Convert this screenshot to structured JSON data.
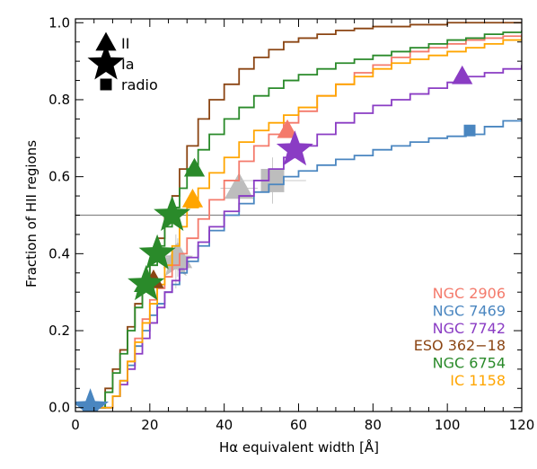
{
  "chart_data": {
    "type": "line",
    "xlabel": "Hα equivalent width [Å]",
    "ylabel": "Fraction of HII regions",
    "xlim": [
      0,
      120
    ],
    "ylim": [
      -0.01,
      1.01
    ],
    "x_ticks": [
      "0",
      "20",
      "40",
      "60",
      "80",
      "100",
      "120"
    ],
    "y_ticks": [
      "0.0",
      "0.2",
      "0.4",
      "0.6",
      "0.8",
      "1.0"
    ],
    "reference_line_y": 0.5,
    "legend_placement": "bottom-right",
    "marker_legend": [
      {
        "symbol": "triangle",
        "label": "II"
      },
      {
        "symbol": "star",
        "label": "Ia"
      },
      {
        "symbol": "square",
        "label": "radio"
      }
    ],
    "series": [
      {
        "name": "NGC 2906",
        "color": "#f47a6b",
        "x": [
          4,
          8,
          10,
          12,
          14,
          16,
          18,
          20,
          22,
          24,
          26,
          28,
          30,
          33,
          36,
          40,
          44,
          48,
          52,
          56,
          60,
          65,
          70,
          75,
          80,
          85,
          90,
          95,
          100,
          105,
          110,
          115,
          120
        ],
        "y": [
          0,
          0,
          0.03,
          0.07,
          0.12,
          0.18,
          0.23,
          0.28,
          0.31,
          0.34,
          0.37,
          0.4,
          0.44,
          0.49,
          0.54,
          0.59,
          0.64,
          0.68,
          0.71,
          0.74,
          0.77,
          0.81,
          0.84,
          0.87,
          0.89,
          0.91,
          0.925,
          0.935,
          0.945,
          0.955,
          0.96,
          0.965,
          0.97
        ],
        "markers": [
          {
            "type": "triangle",
            "x": 57,
            "y": 0.72
          }
        ]
      },
      {
        "name": "NGC 7469",
        "color": "#4a86c0",
        "x": [
          4,
          8,
          10,
          12,
          14,
          16,
          18,
          20,
          22,
          24,
          26,
          28,
          30,
          33,
          36,
          40,
          44,
          48,
          52,
          56,
          60,
          65,
          70,
          75,
          80,
          85,
          90,
          95,
          100,
          105,
          110,
          115,
          120
        ],
        "y": [
          0,
          0,
          0.03,
          0.07,
          0.11,
          0.16,
          0.2,
          0.24,
          0.27,
          0.3,
          0.32,
          0.35,
          0.38,
          0.42,
          0.46,
          0.5,
          0.53,
          0.56,
          0.58,
          0.6,
          0.615,
          0.63,
          0.645,
          0.655,
          0.67,
          0.68,
          0.69,
          0.7,
          0.705,
          0.71,
          0.73,
          0.745,
          0.75
        ],
        "markers": [
          {
            "type": "star",
            "x": 4,
            "y": 0.0
          },
          {
            "type": "square",
            "x": 106,
            "y": 0.72
          }
        ]
      },
      {
        "name": "NGC 7742",
        "color": "#8a3cc4",
        "x": [
          4,
          8,
          10,
          12,
          14,
          16,
          18,
          20,
          22,
          24,
          26,
          28,
          30,
          33,
          36,
          40,
          44,
          48,
          52,
          56,
          60,
          65,
          70,
          75,
          80,
          85,
          90,
          95,
          100,
          105,
          110,
          115,
          120
        ],
        "y": [
          0,
          0,
          0.03,
          0.06,
          0.1,
          0.14,
          0.18,
          0.22,
          0.26,
          0.3,
          0.33,
          0.36,
          0.39,
          0.43,
          0.47,
          0.51,
          0.55,
          0.59,
          0.62,
          0.65,
          0.68,
          0.71,
          0.74,
          0.765,
          0.785,
          0.8,
          0.815,
          0.83,
          0.845,
          0.86,
          0.87,
          0.88,
          0.89
        ],
        "markers": [
          {
            "type": "triangle",
            "x": 104,
            "y": 0.86
          },
          {
            "type": "star",
            "x": 59,
            "y": 0.67
          }
        ]
      },
      {
        "name": "ESO 362−18",
        "color": "#8b4513",
        "x": [
          4,
          6,
          8,
          10,
          12,
          14,
          16,
          18,
          20,
          22,
          24,
          26,
          28,
          30,
          33,
          36,
          40,
          44,
          48,
          52,
          56,
          60,
          65,
          70,
          75,
          80,
          85,
          90,
          95,
          100,
          105,
          110,
          115,
          120
        ],
        "y": [
          0,
          0,
          0.05,
          0.1,
          0.15,
          0.21,
          0.27,
          0.32,
          0.38,
          0.44,
          0.5,
          0.55,
          0.62,
          0.68,
          0.75,
          0.8,
          0.84,
          0.88,
          0.91,
          0.93,
          0.95,
          0.96,
          0.97,
          0.98,
          0.985,
          0.99,
          0.99,
          0.995,
          0.995,
          1.0,
          1.0,
          1.0,
          1.0,
          1.0
        ],
        "markers": [
          {
            "type": "triangle",
            "x": 21,
            "y": 0.33
          }
        ]
      },
      {
        "name": "NGC 6754",
        "color": "#2a8a2a",
        "x": [
          4,
          6,
          8,
          10,
          12,
          14,
          16,
          18,
          20,
          22,
          24,
          26,
          28,
          30,
          33,
          36,
          40,
          44,
          48,
          52,
          56,
          60,
          65,
          70,
          75,
          80,
          85,
          90,
          95,
          100,
          105,
          110,
          115,
          120
        ],
        "y": [
          0,
          0,
          0.04,
          0.09,
          0.14,
          0.2,
          0.26,
          0.31,
          0.37,
          0.42,
          0.47,
          0.52,
          0.57,
          0.62,
          0.67,
          0.71,
          0.75,
          0.78,
          0.81,
          0.83,
          0.85,
          0.865,
          0.88,
          0.895,
          0.905,
          0.915,
          0.925,
          0.935,
          0.945,
          0.955,
          0.96,
          0.97,
          0.975,
          0.98
        ],
        "markers": [
          {
            "type": "triangle",
            "x": 18.5,
            "y": 0.32
          },
          {
            "type": "triangle",
            "x": 32,
            "y": 0.62
          },
          {
            "type": "star",
            "x": 19,
            "y": 0.32
          },
          {
            "type": "star",
            "x": 22,
            "y": 0.4
          },
          {
            "type": "star",
            "x": 26,
            "y": 0.5
          }
        ]
      },
      {
        "name": "IC 1158",
        "color": "#ffa500",
        "x": [
          4,
          8,
          10,
          12,
          14,
          16,
          18,
          20,
          22,
          24,
          26,
          28,
          30,
          33,
          36,
          40,
          44,
          48,
          52,
          56,
          60,
          65,
          70,
          75,
          80,
          85,
          90,
          95,
          100,
          105,
          110,
          115,
          120
        ],
        "y": [
          0,
          0,
          0.03,
          0.07,
          0.12,
          0.17,
          0.22,
          0.27,
          0.32,
          0.37,
          0.42,
          0.47,
          0.52,
          0.57,
          0.61,
          0.65,
          0.69,
          0.72,
          0.74,
          0.76,
          0.78,
          0.81,
          0.84,
          0.86,
          0.88,
          0.895,
          0.905,
          0.915,
          0.925,
          0.935,
          0.945,
          0.955,
          0.965
        ],
        "markers": [
          {
            "type": "triangle",
            "x": 31.5,
            "y": 0.54
          }
        ]
      }
    ],
    "gray_markers": [
      {
        "type": "star",
        "x": 27,
        "y": 0.38,
        "xerr": 3,
        "yerr": 0.07
      },
      {
        "type": "triangle",
        "x": 27.5,
        "y": 0.39,
        "xerr": 4,
        "yerr": 0.05
      },
      {
        "type": "triangle",
        "x": 44,
        "y": 0.57,
        "xerr": 5,
        "yerr": 0.04
      },
      {
        "type": "square",
        "x": 53,
        "y": 0.59,
        "xerr": 9,
        "yerr": 0.06
      }
    ]
  }
}
